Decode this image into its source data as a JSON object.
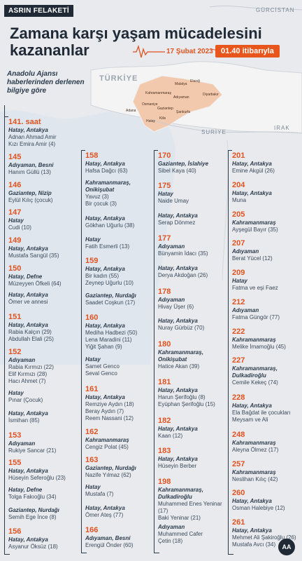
{
  "header": {
    "badge": "ASRIN FELAKETİ",
    "title_line1": "Zamana karşı yaşam mücadelesini",
    "title_line2": "kazananlar",
    "date": "17 Şubat 2023",
    "time": "01.40 itibarıyla",
    "source": "Anadolu Ajansı haberlerinden derlenen bilgiye göre"
  },
  "map": {
    "country": "TÜRKİYE",
    "neighbor_ne": "GÜRCİSTAN",
    "neighbor_s": "SURİYE",
    "neighbor_se": "IRAK",
    "cities": [
      "Malatya",
      "Elazığ",
      "Diyarbakır",
      "Adıyaman",
      "Kahramanmaraş",
      "Osmaniye",
      "Gaziantep",
      "Adana",
      "Şanlıurfa",
      "Hatay",
      "Kilis"
    ]
  },
  "col1": [
    {
      "hour": "141. saat",
      "loc": "Hatay, Antakya",
      "names": [
        "Adnan Ahmad Amir",
        "Kızı Emira Amir (4)"
      ]
    },
    {
      "hour": "145",
      "loc": "Adıyaman, Besni",
      "names": [
        "Hanım Güllü (13)"
      ]
    },
    {
      "hour": "146",
      "loc": "Gaziantep, Nizip",
      "names": [
        "Eylül Kılıç (çocuk)"
      ]
    },
    {
      "hour": "147",
      "loc": "Hatay",
      "names": [
        "Cudi (10)"
      ]
    },
    {
      "hour": "149",
      "loc": "Hatay, Antakya",
      "names": [
        "Mustafa Sarıgül (35)"
      ]
    },
    {
      "hour": "150",
      "loc": "Hatay, Defne",
      "names": [
        "Müzeyyen Öfkeli (64)"
      ]
    },
    {
      "hour": "",
      "loc": "Hatay, Antakya",
      "names": [
        "Ömer ve annesi"
      ]
    },
    {
      "hour": "151",
      "loc": "Hatay, Antakya",
      "names": [
        "Rabia Kalçın (29)",
        "Abdullah Elali (25)"
      ]
    },
    {
      "hour": "152",
      "loc": "Adıyaman",
      "names": [
        "Rabia Kırmızı (22)",
        "Elif Kırmızı (28)",
        "Hacı Ahmet (7)"
      ]
    },
    {
      "hour": "",
      "loc": "Hatay",
      "names": [
        "Pınar (Çocuk)"
      ]
    },
    {
      "hour": "",
      "loc": "Hatay, Antakya",
      "names": [
        "İsmihan (85)"
      ]
    },
    {
      "hour": "153",
      "loc": "Adıyaman",
      "names": [
        "Rukiye Sancar (21)"
      ]
    },
    {
      "hour": "155",
      "loc": "Hatay, Antakya",
      "names": [
        "Hüseyin Seferoğlu (23)"
      ]
    },
    {
      "hour": "",
      "loc": "Hatay, Defne",
      "names": [
        "Tolga Fakıoğlu (34)"
      ]
    },
    {
      "hour": "",
      "loc": "Gaziantep, Nurdağı",
      "names": [
        "Semih Ege İnce (8)"
      ]
    },
    {
      "hour": "156",
      "loc": "Hatay, Antakya",
      "names": [
        "Asyanur Öksüz (18)"
      ]
    }
  ],
  "col2": [
    {
      "hour": "158",
      "loc": "Hatay, Antakya",
      "names": [
        "Hafsa Dağcı (63)"
      ]
    },
    {
      "hour": "",
      "loc": "Kahramanmaraş, Onikişubat",
      "names": [
        "Yavuz (3)",
        "Bir çocuk (3)"
      ]
    },
    {
      "hour": "",
      "loc": "Hatay, Antakya",
      "names": [
        "Gökhan Uğurlu (38)"
      ]
    },
    {
      "hour": "",
      "loc": "Hatay",
      "names": [
        "Fatih Esmerli (13)"
      ]
    },
    {
      "hour": "159",
      "loc": "Hatay, Antakya",
      "names": [
        "Bir kadın (55)",
        "Zeynep Uğurlu (10)"
      ]
    },
    {
      "hour": "",
      "loc": "Gaziantep, Nurdağı",
      "names": [
        "Saadet Coşkun (17)"
      ]
    },
    {
      "hour": "160",
      "loc": "Hatay, Antakya",
      "names": [
        "Mediha Hadbezi (50)",
        "Lena Maradini (11)",
        "Yiğit Şahan (9)"
      ]
    },
    {
      "hour": "",
      "loc": "Hatay",
      "names": [
        "Samet Genco",
        "Seval Genco"
      ]
    },
    {
      "hour": "161",
      "loc": "Hatay, Antakya",
      "names": [
        "Remziye Aydın (18)",
        "Beray Aydın (7)",
        "Reem Nassani (12)"
      ]
    },
    {
      "hour": "162",
      "loc": "Kahramanmaraş",
      "names": [
        "Cengiz Polat (45)"
      ]
    },
    {
      "hour": "163",
      "loc": "Gaziantep, Nurdağı",
      "names": [
        "Nazife Yılmaz (62)"
      ]
    },
    {
      "hour": "",
      "loc": "Hatay",
      "names": [
        "Mustafa (7)"
      ]
    },
    {
      "hour": "",
      "loc": "Hatay, Antakya",
      "names": [
        "Ömer Ateş (77)"
      ]
    },
    {
      "hour": "166",
      "loc": "Adıyaman, Besni",
      "names": [
        "Erengül Önder (60)"
      ]
    }
  ],
  "col3": [
    {
      "hour": "170",
      "loc": "Gaziantep, İslahiye",
      "names": [
        "Sibel Kaya (40)"
      ]
    },
    {
      "hour": "175",
      "loc": "Hatay",
      "names": [
        "Naide Umay"
      ]
    },
    {
      "hour": "",
      "loc": "Hatay, Antakya",
      "names": [
        "Serap Dönmez"
      ]
    },
    {
      "hour": "177",
      "loc": "Adıyaman",
      "names": [
        "Bünyamin İdacı (35)"
      ]
    },
    {
      "hour": "",
      "loc": "Hatay, Antakya",
      "names": [
        "Derya Akdoğan (26)"
      ]
    },
    {
      "hour": "178",
      "loc": "Adıyaman",
      "names": [
        "Hivay Üşer (6)"
      ]
    },
    {
      "hour": "",
      "loc": "Hatay, Antakya",
      "names": [
        "Nuray Gürbüz (70)"
      ]
    },
    {
      "hour": "180",
      "loc": "Kahramanmaraş, Onikişubat",
      "names": [
        "Hatice Akan (39)"
      ]
    },
    {
      "hour": "181",
      "loc": "Hatay, Antakya",
      "names": [
        "Harun Şerifoğlu (8)",
        "Eyüphan Şerifoğlu (15)"
      ]
    },
    {
      "hour": "182",
      "loc": "Hatay, Antakya",
      "names": [
        "Kaan (12)"
      ]
    },
    {
      "hour": "183",
      "loc": "Hatay, Antakya",
      "names": [
        "Hüseyin Berber"
      ]
    },
    {
      "hour": "198",
      "loc": "Kahramanmaraş, Dulkadiroğlu",
      "names": [
        "Muhammed Enes Yeninar (17)",
        "Baki Yeninar (21)"
      ]
    },
    {
      "hour": "",
      "loc": "Adıyaman",
      "names": [
        "Muhammed Cafer",
        "Çetin (18)"
      ]
    }
  ],
  "col4": [
    {
      "hour": "201",
      "loc": "Hatay, Antakya",
      "names": [
        "Emine Akgül (26)"
      ]
    },
    {
      "hour": "204",
      "loc": "Hatay, Antakya",
      "names": [
        "Muna"
      ]
    },
    {
      "hour": "205",
      "loc": "Kahramanmaraş",
      "names": [
        "Ayşegül Bayır (35)"
      ]
    },
    {
      "hour": "207",
      "loc": "Adıyaman",
      "names": [
        "Berat Yücel (12)"
      ]
    },
    {
      "hour": "209",
      "loc": "Hatay",
      "names": [
        "Fatma ve eşi Faez"
      ]
    },
    {
      "hour": "212",
      "loc": "Adıyaman",
      "names": [
        "Fatma Güngör (77)"
      ]
    },
    {
      "hour": "222",
      "loc": "Kahramanmaraş",
      "names": [
        "Melike İmamoğlu (45)"
      ]
    },
    {
      "hour": "227",
      "loc": "Kahramanmaraş, Dulkadiroğlu",
      "names": [
        "Cemile Kekeç (74)"
      ]
    },
    {
      "hour": "228",
      "loc": "Hatay, Antakya",
      "names": [
        "Ela Bağdat ile çocukları",
        "Meysam ve Ali"
      ]
    },
    {
      "hour": "248",
      "loc": "Kahramanmaraş",
      "names": [
        "Aleyna Ölmez (17)"
      ]
    },
    {
      "hour": "257",
      "loc": "Kahramanmaraş",
      "names": [
        "Neslihan Kılıç (42)"
      ]
    },
    {
      "hour": "260",
      "loc": "Hatay, Antakya",
      "names": [
        "Osman Halebiye (12)"
      ]
    },
    {
      "hour": "261",
      "loc": "Hatay, Antakya",
      "names": [
        "Mehmet Ali Şakiroğlu (26)",
        "Mustafa Avcı (34)"
      ]
    }
  ],
  "footer": {
    "logo": "AA"
  }
}
